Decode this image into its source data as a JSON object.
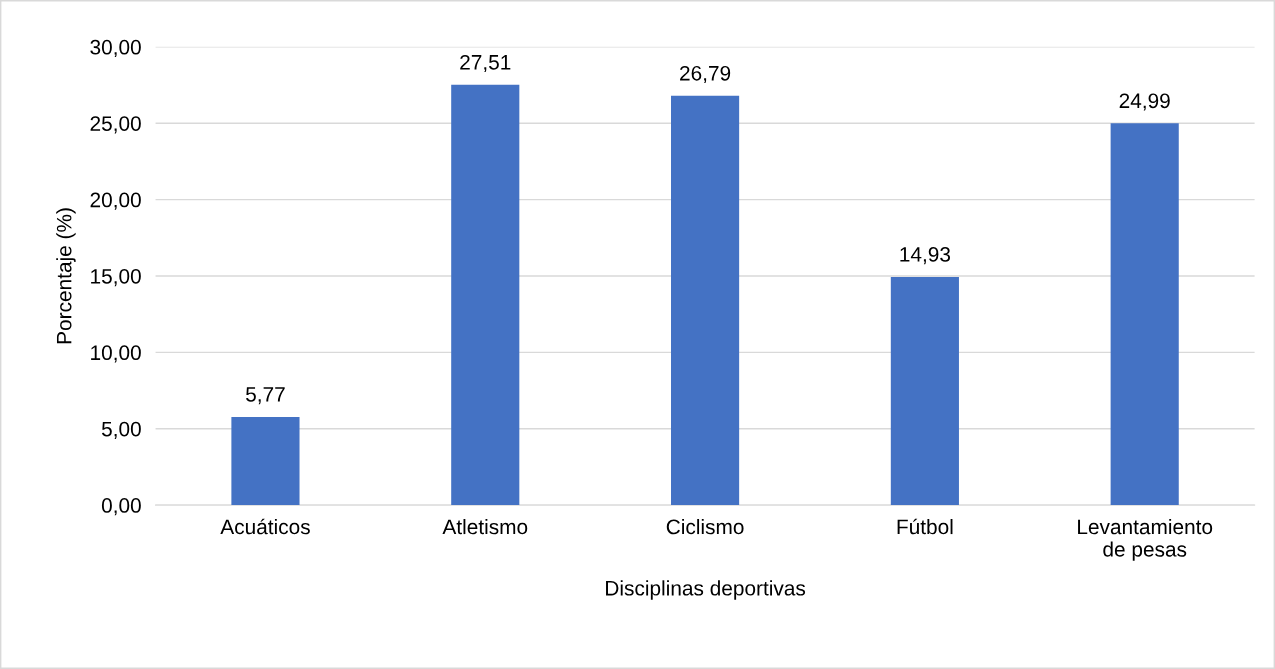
{
  "chart_data": {
    "type": "bar",
    "xlabel": "Disciplinas deportivas",
    "ylabel": "Porcentaje (%)",
    "categories": [
      "Acuáticos",
      "Atletismo",
      "Ciclismo",
      "Fútbol",
      "Levantamiento\nde pesas"
    ],
    "values": [
      5.77,
      27.51,
      26.79,
      14.93,
      24.99
    ],
    "value_labels": [
      "5,77",
      "27,51",
      "26,79",
      "14,93",
      "24,99"
    ],
    "color": "#4472c4",
    "ylim": [
      0,
      30
    ],
    "yticks": [
      {
        "value": 0,
        "label": "0,00"
      },
      {
        "value": 5,
        "label": "5,00"
      },
      {
        "value": 10,
        "label": "10,00"
      },
      {
        "value": 15,
        "label": "15,00"
      },
      {
        "value": 20,
        "label": "20,00"
      },
      {
        "value": 25,
        "label": "25,00"
      },
      {
        "value": 30,
        "label": "30,00"
      }
    ],
    "grid": "y",
    "legend": false
  }
}
